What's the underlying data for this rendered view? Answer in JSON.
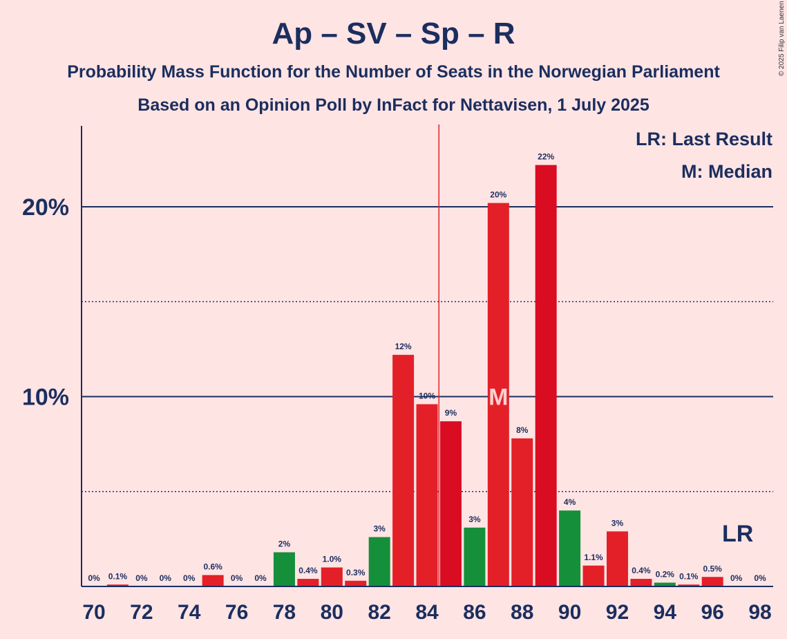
{
  "header": {
    "title": "Ap – SV – Sp – R",
    "subtitle1": "Probability Mass Function for the Number of Seats in the Norwegian Parliament",
    "subtitle2": "Based on an Opinion Poll by InFact for Nettavisen, 1 July 2025",
    "copyright": "© 2025 Filip van Laenen"
  },
  "legend": {
    "last_result": "LR: Last Result",
    "median": "M: Median"
  },
  "markers": {
    "lr_label": "LR",
    "median_label": "M"
  },
  "chart_data": {
    "type": "bar",
    "x": [
      70,
      71,
      72,
      73,
      74,
      75,
      76,
      77,
      78,
      79,
      80,
      81,
      82,
      83,
      84,
      85,
      86,
      87,
      88,
      89,
      90,
      91,
      92,
      93,
      94,
      95,
      96,
      97,
      98
    ],
    "values": [
      0,
      0.1,
      0,
      0,
      0,
      0.6,
      0,
      0,
      1.8,
      0.4,
      1.0,
      0.3,
      2.6,
      12.2,
      9.6,
      8.7,
      3.1,
      20.2,
      7.8,
      22.2,
      4.0,
      1.1,
      2.9,
      0.4,
      0.2,
      0.1,
      0.5,
      0,
      0
    ],
    "labels": [
      "0%",
      "0.1%",
      "0%",
      "0%",
      "0%",
      "0.6%",
      "0%",
      "0%",
      "2%",
      "0.4%",
      "1.0%",
      "0.3%",
      "3%",
      "12%",
      "10%",
      "9%",
      "3%",
      "20%",
      "8%",
      "22%",
      "4%",
      "1.1%",
      "3%",
      "0.4%",
      "0.2%",
      "0.1%",
      "0.5%",
      "0%",
      "0%"
    ],
    "colors": [
      "#e32028",
      "#e32028",
      "#e32028",
      "#e32028",
      "#e32028",
      "#e32028",
      "#e32028",
      "#e32028",
      "#168f3a",
      "#e32028",
      "#e32028",
      "#e32028",
      "#168f3a",
      "#e32028",
      "#e32028",
      "#d90c22",
      "#168f3a",
      "#e32028",
      "#e32028",
      "#d90c22",
      "#168f3a",
      "#e32028",
      "#e32028",
      "#e32028",
      "#168f3a",
      "#e32028",
      "#e32028",
      "#e32028",
      "#e32028"
    ],
    "xticks": [
      "70",
      "72",
      "74",
      "76",
      "78",
      "80",
      "82",
      "84",
      "86",
      "88",
      "90",
      "92",
      "94",
      "96",
      "98"
    ],
    "yticks": [
      "10%",
      "20%"
    ],
    "ylim": [
      0,
      24
    ],
    "majority_line": 84.5,
    "median": 87,
    "last_result": 97,
    "grid": true
  }
}
